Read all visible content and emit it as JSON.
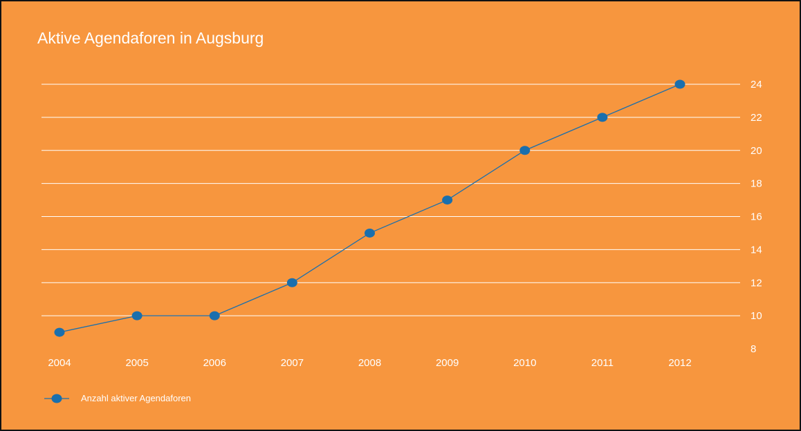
{
  "chart_data": {
    "type": "line",
    "title": "Aktive Agendaforen in Augsburg",
    "xlabel": "",
    "ylabel": "",
    "categories": [
      "2004",
      "2005",
      "2006",
      "2007",
      "2008",
      "2009",
      "2010",
      "2011",
      "2012"
    ],
    "series": [
      {
        "name": "Anzahl aktiver Agendaforen",
        "values": [
          9,
          10,
          10,
          12,
          15,
          17,
          20,
          22,
          24
        ]
      }
    ],
    "ylim": [
      8,
      24
    ],
    "yticks": [
      8,
      10,
      12,
      14,
      16,
      18,
      20,
      22,
      24
    ],
    "y_axis_side": "right",
    "grid": true,
    "legend_position": "bottom-left"
  },
  "colors": {
    "background": "#f7963e",
    "series": "#1a6fad",
    "grid": "#ffffff",
    "text": "#ffffff"
  }
}
